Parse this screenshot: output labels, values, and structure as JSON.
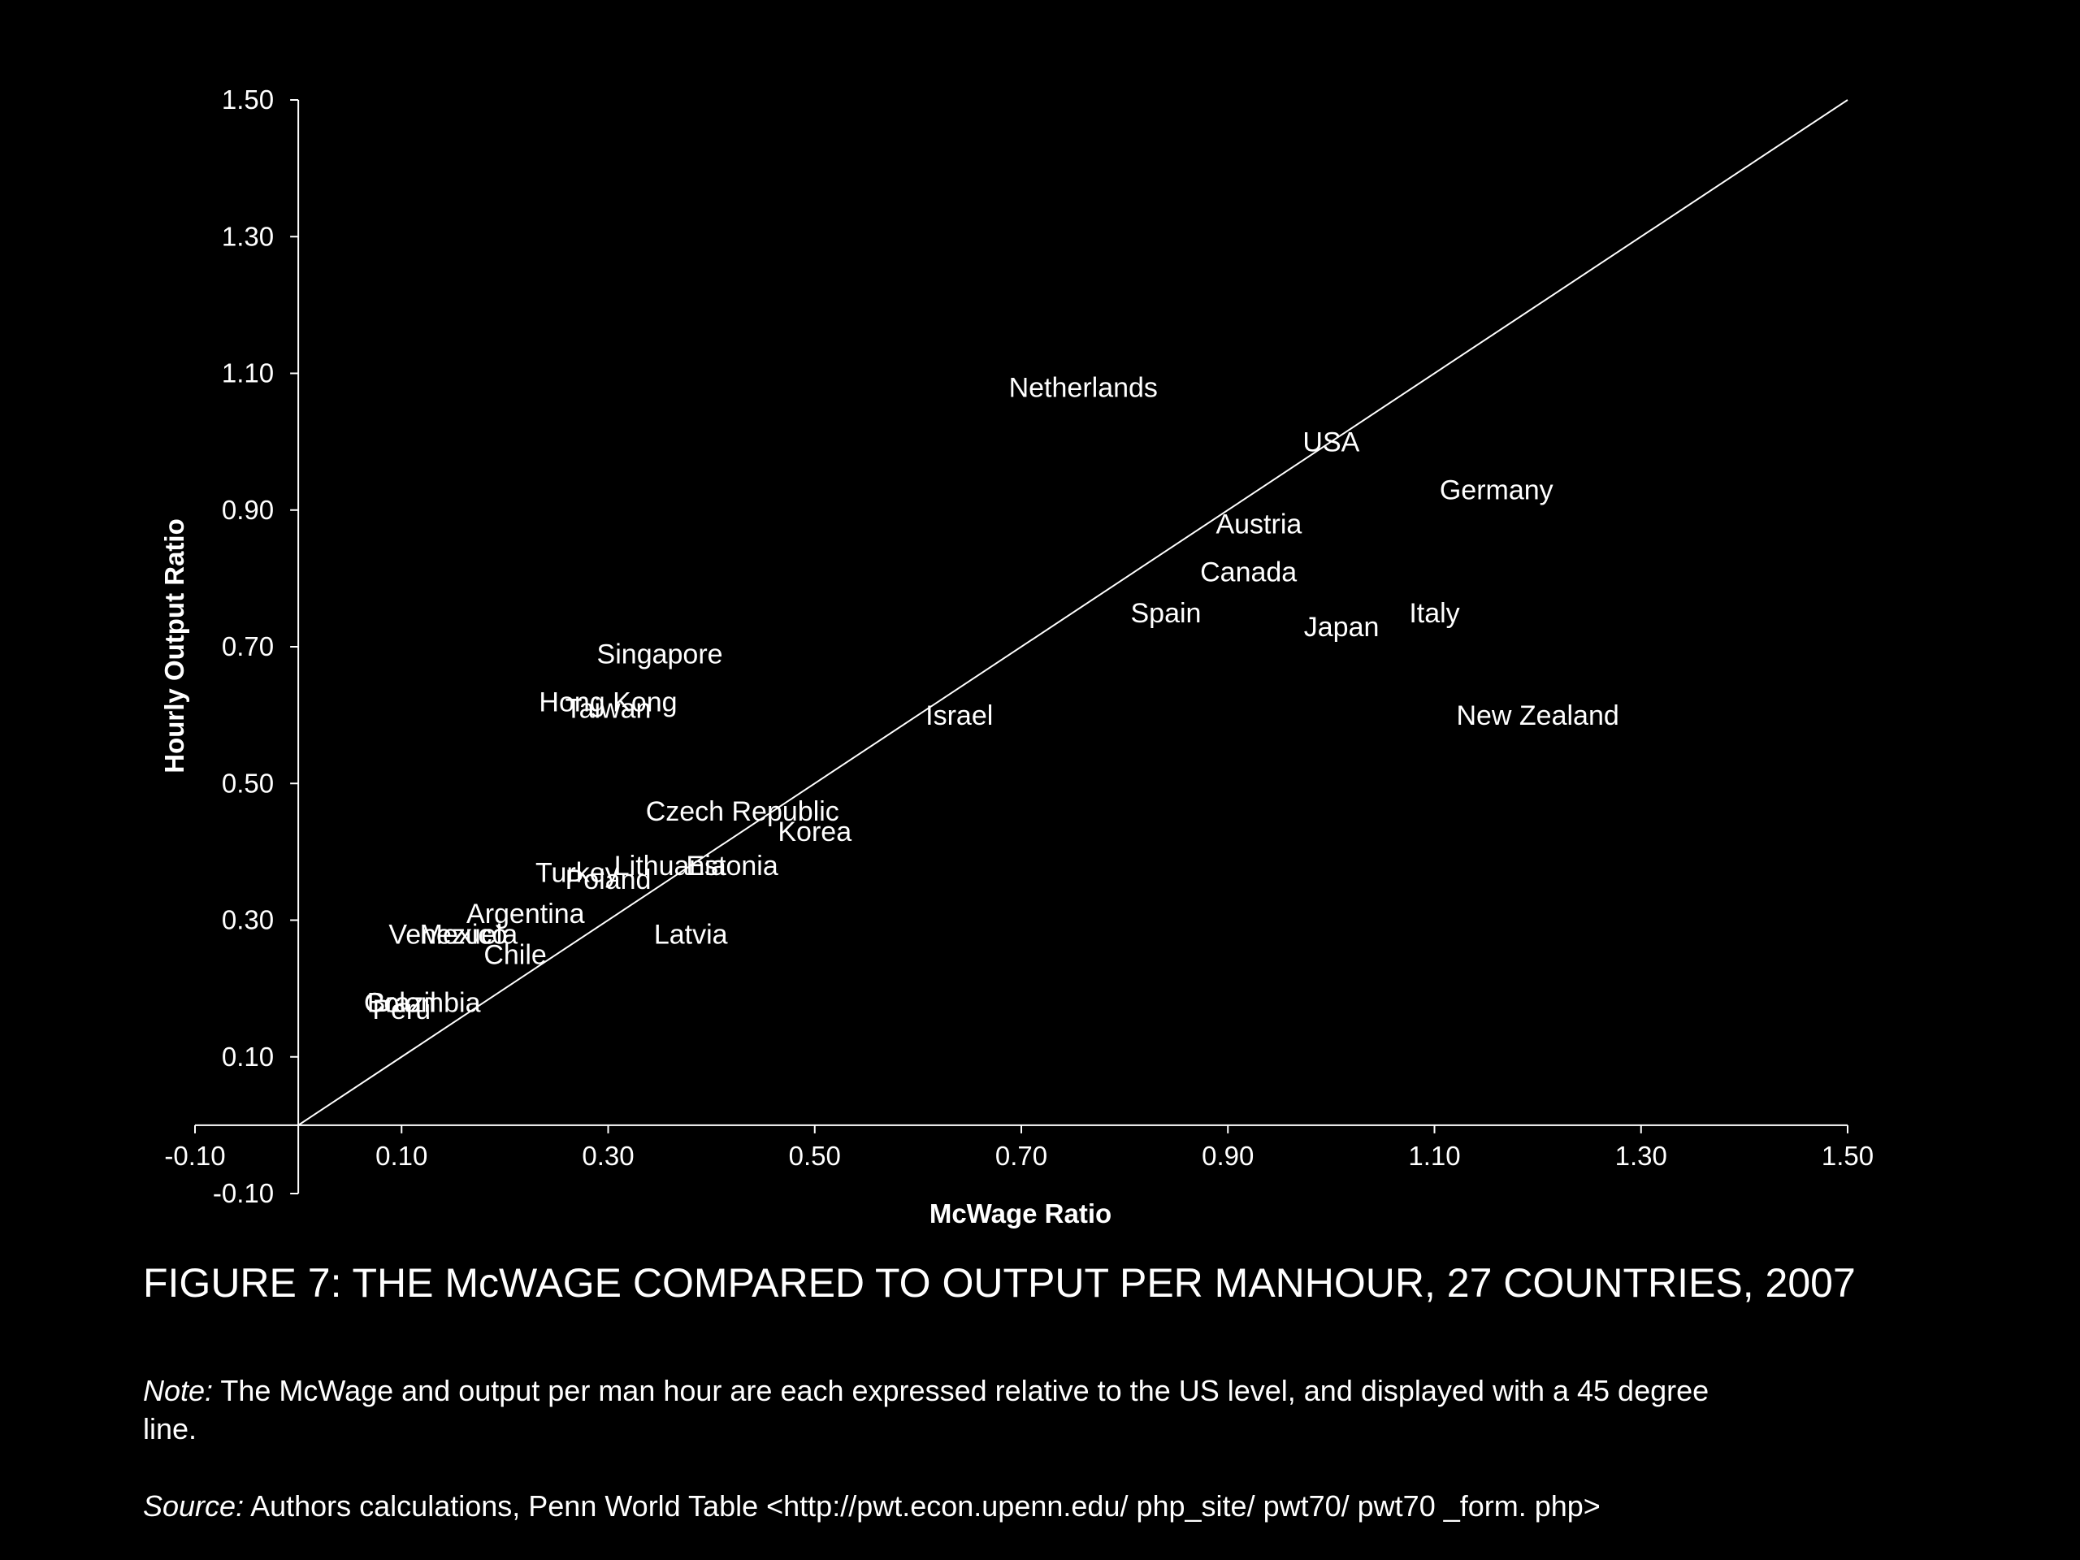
{
  "chart_data": {
    "type": "scatter",
    "xlabel": "McWage Ratio",
    "ylabel": "Hourly Output Ratio",
    "xlim": [
      -0.1,
      1.5
    ],
    "ylim": [
      -0.1,
      1.5
    ],
    "x_ticks": [
      "-0.10",
      "0.10",
      "0.30",
      "0.50",
      "0.70",
      "0.90",
      "1.10",
      "1.30",
      "1.50"
    ],
    "y_ticks": [
      "-0.10",
      "0.10",
      "0.30",
      "0.50",
      "0.70",
      "0.90",
      "1.10",
      "1.30",
      "1.50"
    ],
    "reference_line": {
      "from": [
        0,
        0
      ],
      "to": [
        1.5,
        1.5
      ]
    },
    "points": [
      {
        "label": "Netherlands",
        "x": 0.76,
        "y": 1.08
      },
      {
        "label": "USA",
        "x": 1.0,
        "y": 1.0
      },
      {
        "label": "Germany",
        "x": 1.16,
        "y": 0.93
      },
      {
        "label": "Austria",
        "x": 0.93,
        "y": 0.88
      },
      {
        "label": "Canada",
        "x": 0.92,
        "y": 0.81
      },
      {
        "label": "Spain",
        "x": 0.84,
        "y": 0.75
      },
      {
        "label": "Japan",
        "x": 1.01,
        "y": 0.73
      },
      {
        "label": "Italy",
        "x": 1.1,
        "y": 0.75
      },
      {
        "label": "Singapore",
        "x": 0.35,
        "y": 0.69
      },
      {
        "label": "Hong Kong",
        "x": 0.3,
        "y": 0.62
      },
      {
        "label": "Taiwan",
        "x": 0.3,
        "y": 0.61
      },
      {
        "label": "Israel",
        "x": 0.64,
        "y": 0.6
      },
      {
        "label": "New Zealand",
        "x": 1.2,
        "y": 0.6
      },
      {
        "label": "Czech Republic",
        "x": 0.43,
        "y": 0.46
      },
      {
        "label": "Korea",
        "x": 0.5,
        "y": 0.43
      },
      {
        "label": "Estonia",
        "x": 0.42,
        "y": 0.38
      },
      {
        "label": "Lithuania",
        "x": 0.36,
        "y": 0.38
      },
      {
        "label": "Turkey",
        "x": 0.27,
        "y": 0.37
      },
      {
        "label": "Poland",
        "x": 0.3,
        "y": 0.36
      },
      {
        "label": "Argentina",
        "x": 0.22,
        "y": 0.31
      },
      {
        "label": "Latvia",
        "x": 0.38,
        "y": 0.28
      },
      {
        "label": "Venezuela",
        "x": 0.15,
        "y": 0.28
      },
      {
        "label": "Mexico",
        "x": 0.16,
        "y": 0.28
      },
      {
        "label": "Chile",
        "x": 0.21,
        "y": 0.25
      },
      {
        "label": "Colombia",
        "x": 0.12,
        "y": 0.18
      },
      {
        "label": "Brazil",
        "x": 0.1,
        "y": 0.18
      },
      {
        "label": "Peru",
        "x": 0.1,
        "y": 0.17
      }
    ]
  },
  "caption": "FIGURE 7: THE McWAGE COMPARED TO OUTPUT PER MANHOUR, 27 COUNTRIES, 2007",
  "note": {
    "label": "Note:",
    "text": " The McWage and output per man hour are each expressed relative to the US level, and displayed with a 45 degree line."
  },
  "source": {
    "label": "Source:",
    "text": " Authors calculations, Penn World Table <http://pwt.econ.upenn.edu/ php_site/ pwt70/ pwt70 _form. php>"
  },
  "colors": {
    "background": "#000000",
    "foreground": "#ffffff"
  }
}
